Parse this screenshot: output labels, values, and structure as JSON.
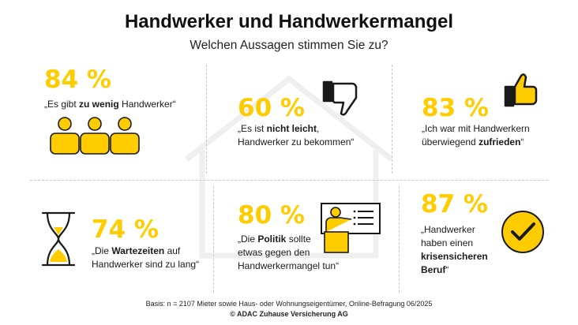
{
  "header": {
    "title": "Handwerker und Handwerkermangel",
    "subtitle": "Welchen Aussagen stimmen Sie zu?"
  },
  "stats": [
    {
      "percent": "84 %",
      "parts": [
        "„Es gibt ",
        "zu wenig",
        " Handwerker“"
      ],
      "icon": "people-icon"
    },
    {
      "percent": "60 %",
      "parts": [
        "„Es ist ",
        "nicht leicht",
        ",\nHandwerker zu bekommen“"
      ],
      "icon": "thumbs-down-icon"
    },
    {
      "percent": "83 %",
      "parts": [
        "„Ich war mit Handwerkern\nüberwiegend ",
        "zufrieden",
        "“"
      ],
      "icon": "thumbs-up-icon"
    },
    {
      "percent": "74 %",
      "parts": [
        "„Die ",
        "Wartezeiten",
        " auf\nHandwerker sind zu lang“"
      ],
      "icon": "hourglass-icon"
    },
    {
      "percent": "80 %",
      "parts": [
        "„Die ",
        "Politik",
        " sollte\netwas gegen den\nHandwerkermangel tun“"
      ],
      "icon": "speaker-presentation-icon"
    },
    {
      "percent": "87 %",
      "parts": [
        "„Handwerker\nhaben einen\n",
        "krisensicheren\nBeruf",
        "“"
      ],
      "icon": "checkmark-circle-icon"
    }
  ],
  "footer": {
    "basis": "Basis: n = 2107 Mieter sowie Haus- oder Wohnungseigentümer, Online-Befragung 06/2025",
    "copyright": "© ADAC Zuhause Versicherung AG"
  },
  "colors": {
    "accent": "#FFCC00",
    "text": "#1A1A1A",
    "divider": "#C8C8C8",
    "watermark": "#EFEFEF"
  }
}
